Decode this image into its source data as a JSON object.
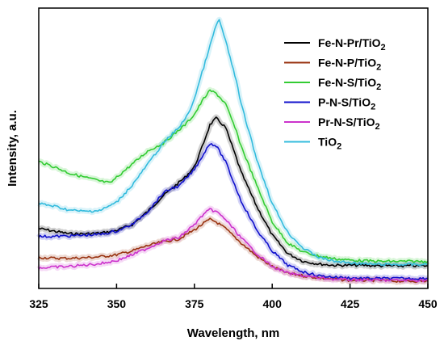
{
  "chart_data": {
    "type": "line",
    "title": "",
    "xlabel": "Wavelength, nm",
    "ylabel": "Intensity, a.u.",
    "xlim": [
      325,
      450
    ],
    "ylim": [
      0,
      100
    ],
    "x_ticks": [
      325,
      350,
      375,
      400,
      425,
      450
    ],
    "y_ticks_shown": false,
    "grid": false,
    "legend_position": "top-right",
    "series": [
      {
        "name": "Fe-N-Pr/TiO",
        "name_sub": "2",
        "color": "#000000",
        "x": [
          325,
          330,
          335,
          340,
          345,
          350,
          355,
          360,
          365,
          370,
          372,
          375,
          377,
          380,
          382,
          385,
          388,
          390,
          395,
          400,
          405,
          410,
          415,
          420,
          425,
          430,
          435,
          440,
          445,
          450
        ],
        "y": [
          18.5,
          17.5,
          16.5,
          16.5,
          16.8,
          17.8,
          20,
          25,
          31,
          36,
          38,
          42,
          48,
          58,
          60.5,
          57,
          47,
          40,
          27,
          16,
          9,
          6,
          5,
          4.5,
          4.5,
          4.5,
          4.3,
          4.3,
          4.3,
          4.3
        ]
      },
      {
        "name": "Fe-N-P/TiO",
        "name_sub": "2",
        "color": "#993311",
        "x": [
          325,
          330,
          335,
          340,
          345,
          350,
          355,
          360,
          365,
          370,
          375,
          378,
          380,
          382,
          385,
          390,
          395,
          400,
          405,
          410,
          415,
          420,
          425,
          430,
          435,
          440,
          445,
          450
        ],
        "y": [
          7.5,
          7.2,
          7.2,
          7.4,
          7.8,
          8.5,
          10,
          12,
          13.5,
          14.5,
          18,
          20.5,
          22,
          21,
          18.5,
          13,
          8,
          4,
          1.5,
          0.5,
          -0.3,
          -0.8,
          -1.2,
          -1.2,
          -1.2,
          -1.5,
          -1.5,
          -1.5
        ]
      },
      {
        "name": "Fe-N-S/TiO",
        "name_sub": "2",
        "color": "#33cc33",
        "x": [
          325,
          330,
          335,
          340,
          345,
          348,
          350,
          355,
          360,
          365,
          370,
          372,
          375,
          378,
          380,
          382,
          385,
          388,
          390,
          395,
          400,
          405,
          410,
          415,
          420,
          425,
          430,
          435,
          440,
          445,
          450
        ],
        "y": [
          44,
          42,
          39.5,
          38,
          36.5,
          35.8,
          38,
          43,
          48,
          51,
          56,
          58,
          62,
          68,
          71,
          70,
          66,
          57,
          50,
          35,
          21,
          13,
          9.5,
          8,
          7,
          6.5,
          6.2,
          6,
          6,
          6,
          6
        ]
      },
      {
        "name": "P-N-S/TiO",
        "name_sub": "2",
        "color": "#1111cc",
        "x": [
          325,
          330,
          335,
          340,
          345,
          350,
          355,
          360,
          365,
          368,
          370,
          375,
          378,
          380,
          382,
          385,
          388,
          390,
          395,
          400,
          405,
          410,
          415,
          420,
          425,
          430,
          435,
          440,
          445,
          450
        ],
        "y": [
          15.5,
          15.5,
          15.7,
          16,
          16.3,
          17.5,
          20,
          25,
          32,
          34,
          34.5,
          41,
          47,
          51,
          50,
          44,
          35,
          29,
          18,
          10,
          4.5,
          2,
          0.5,
          0,
          -0.3,
          -0.5,
          -0.5,
          -0.5,
          -0.5,
          -0.5
        ]
      },
      {
        "name": "Pr-N-S/TiO",
        "name_sub": "2",
        "color": "#cc33cc",
        "x": [
          325,
          330,
          335,
          340,
          345,
          350,
          355,
          360,
          365,
          370,
          375,
          378,
          380,
          382,
          385,
          390,
          395,
          400,
          405,
          410,
          415,
          420,
          425,
          430,
          435,
          440,
          445,
          450
        ],
        "y": [
          3.5,
          3.8,
          4.1,
          4.6,
          5.2,
          6.3,
          8.5,
          11,
          13.8,
          15,
          20,
          24,
          25.7,
          25,
          22,
          15,
          9,
          4,
          1.5,
          0.5,
          -0.3,
          -0.8,
          -1,
          -1,
          -1.2,
          -1.2,
          -1.2,
          -1.2
        ]
      },
      {
        "name": "TiO",
        "name_sub": "2",
        "color": "#33bbdd",
        "x": [
          325,
          330,
          335,
          340,
          345,
          350,
          355,
          360,
          365,
          370,
          373,
          375,
          378,
          380,
          382,
          383,
          385,
          388,
          390,
          395,
          400,
          405,
          410,
          415,
          420,
          425,
          430,
          435,
          440,
          445,
          450
        ],
        "y": [
          28,
          27,
          25.5,
          25,
          25.5,
          28.5,
          35,
          43,
          51,
          57,
          62,
          68,
          80,
          88,
          96,
          98,
          90,
          77,
          66,
          45,
          28,
          17,
          11,
          7.5,
          6,
          5.5,
          5,
          4.8,
          4.8,
          4.8,
          4.8
        ]
      }
    ]
  }
}
